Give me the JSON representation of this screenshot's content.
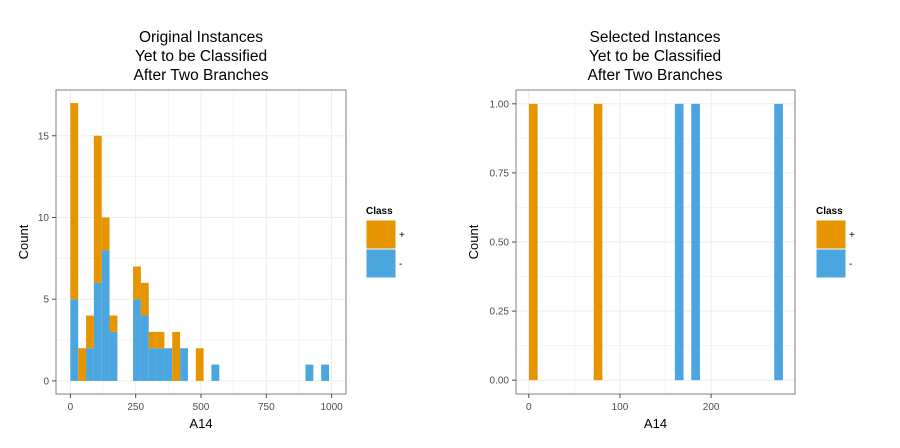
{
  "colors": {
    "plus": "#E69500",
    "minus": "#4BA6E0",
    "grid": "#EBEBEB",
    "panel_border": "#7F7F7F"
  },
  "legend_title": "Class",
  "legend_entries": [
    {
      "label": "+",
      "color": "#E69500"
    },
    {
      "label": "-",
      "color": "#4BA6E0"
    }
  ],
  "chart_data": [
    {
      "type": "bar",
      "stacked": true,
      "title_lines": [
        "Original Instances",
        "Yet to be Classified",
        "After Two Branches"
      ],
      "xlabel": "A14",
      "ylabel": "Count",
      "xlim": [
        -55,
        1055
      ],
      "ylim": [
        -0.8,
        17.8
      ],
      "bin_width": 30,
      "xticks": [
        0,
        250,
        500,
        750,
        1000
      ],
      "xtick_labels": [
        "0",
        "250",
        "500",
        "750",
        "1000"
      ],
      "yticks": [
        0,
        5,
        10,
        15
      ],
      "ytick_labels": [
        "0",
        "5",
        "10",
        "15"
      ],
      "grid": true,
      "legend_position": "right",
      "series": [
        {
          "name": "+",
          "color": "#E69500",
          "bars": [
            {
              "x": 15,
              "y": 12
            },
            {
              "x": 45,
              "y": 2
            },
            {
              "x": 75,
              "y": 2
            },
            {
              "x": 105,
              "y": 9
            },
            {
              "x": 135,
              "y": 2
            },
            {
              "x": 165,
              "y": 1
            },
            {
              "x": 255,
              "y": 2
            },
            {
              "x": 285,
              "y": 2
            },
            {
              "x": 315,
              "y": 1
            },
            {
              "x": 345,
              "y": 1
            },
            {
              "x": 405,
              "y": 3
            },
            {
              "x": 495,
              "y": 2
            }
          ]
        },
        {
          "name": "-",
          "color": "#4BA6E0",
          "bars": [
            {
              "x": 15,
              "y": 5
            },
            {
              "x": 75,
              "y": 2
            },
            {
              "x": 105,
              "y": 6
            },
            {
              "x": 135,
              "y": 8
            },
            {
              "x": 165,
              "y": 3
            },
            {
              "x": 255,
              "y": 5
            },
            {
              "x": 285,
              "y": 4
            },
            {
              "x": 315,
              "y": 2
            },
            {
              "x": 345,
              "y": 2
            },
            {
              "x": 375,
              "y": 2
            },
            {
              "x": 435,
              "y": 2
            },
            {
              "x": 555,
              "y": 1
            },
            {
              "x": 915,
              "y": 1
            },
            {
              "x": 975,
              "y": 1
            }
          ]
        }
      ]
    },
    {
      "type": "bar",
      "stacked": true,
      "title_lines": [
        "Selected Instances",
        "Yet to be Classified",
        "After Two Branches"
      ],
      "xlabel": "A14",
      "ylabel": "Count",
      "xlim": [
        -14,
        292
      ],
      "ylim": [
        -0.05,
        1.05
      ],
      "bin_width": 9.5,
      "xticks": [
        0,
        100,
        200
      ],
      "xtick_labels": [
        "0",
        "100",
        "200"
      ],
      "yticks": [
        0,
        0.25,
        0.5,
        0.75,
        1
      ],
      "ytick_labels": [
        "0.00",
        "0.25",
        "0.50",
        "0.75",
        "1.00"
      ],
      "grid": true,
      "legend_position": "right",
      "series": [
        {
          "name": "+",
          "color": "#E69500",
          "bars": [
            {
              "x": 5,
              "y": 1
            },
            {
              "x": 76,
              "y": 1
            }
          ]
        },
        {
          "name": "-",
          "color": "#4BA6E0",
          "bars": [
            {
              "x": 165,
              "y": 1
            },
            {
              "x": 183,
              "y": 1
            },
            {
              "x": 274,
              "y": 1
            }
          ]
        }
      ]
    }
  ]
}
